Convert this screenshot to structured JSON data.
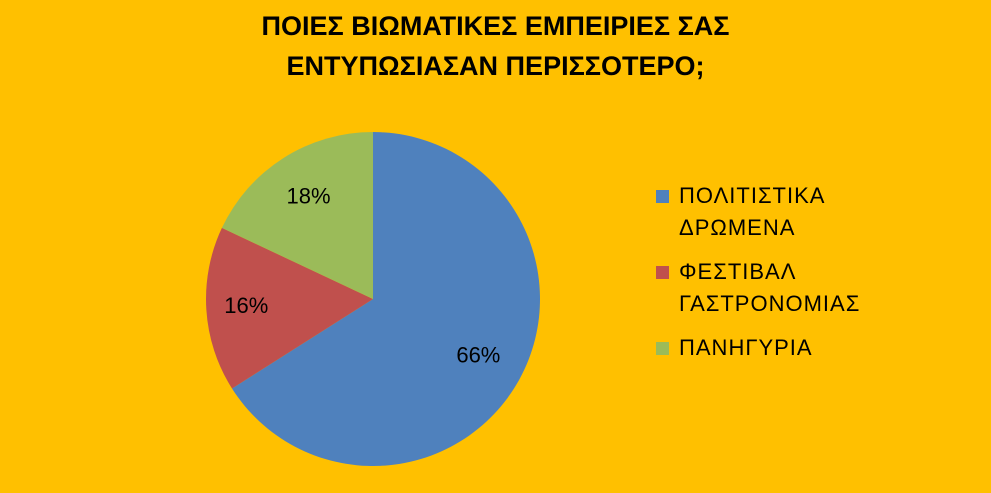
{
  "chart_data": {
    "type": "pie",
    "title_lines": [
      "ΠΟΙΕΣ ΒΙΩΜΑΤΙΚΕΣ ΕΜΠΕΙΡΙΕΣ ΣΑΣ",
      "ΕΝΤΥΠΩΣΙΑΣΑΝ ΠΕΡΙΣΣΟΤΕΡΟ;"
    ],
    "slices": [
      {
        "label": "ΠΟΛΙΤΙΣΤΙΚΑ ΔΡΩΜΕΝΑ",
        "value": 66,
        "value_label": "66%",
        "color": "#4F81BD"
      },
      {
        "label": "ΦΕΣΤΙΒΑΛ ΓΑΣΤΡΟΝΟΜΙΑΣ",
        "value": 16,
        "value_label": "16%",
        "color": "#C0504D"
      },
      {
        "label": "ΠΑΝΗΓΥΡΙΑ",
        "value": 18,
        "value_label": "18%",
        "color": "#9BBB59"
      }
    ],
    "legend_position": "right"
  },
  "background_color": "#FFC000"
}
